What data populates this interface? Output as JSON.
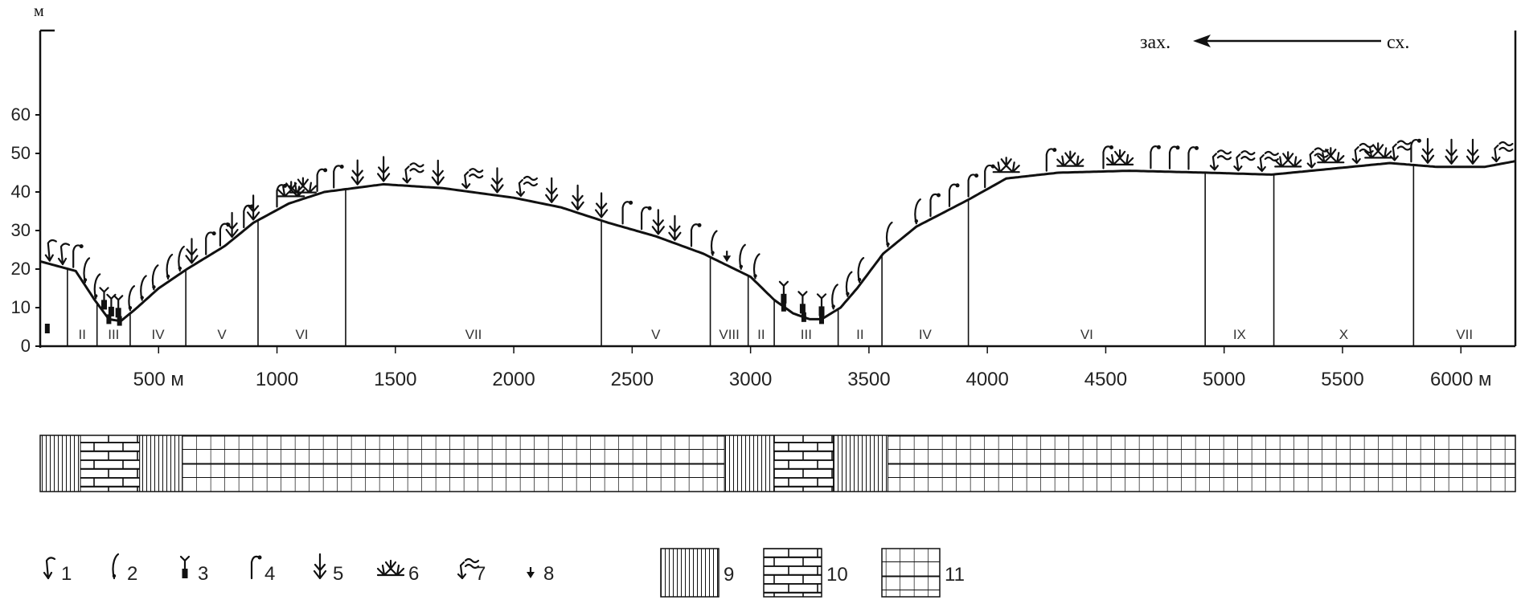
{
  "axes": {
    "y_unit": "м",
    "y_ticks": [
      0,
      10,
      20,
      30,
      40,
      50,
      60
    ],
    "x_ticks": [
      "500 м",
      "1000",
      "1500",
      "2000",
      "2500",
      "3000",
      "3500",
      "4000",
      "4500",
      "5000",
      "5500",
      "6000 м"
    ],
    "x_tick_values": [
      500,
      1000,
      1500,
      2000,
      2500,
      3000,
      3500,
      4000,
      4500,
      5000,
      5500,
      6000
    ],
    "x_range": [
      0,
      6230
    ],
    "y_range": [
      0,
      75
    ]
  },
  "direction": {
    "west": "зах.",
    "east": "сх."
  },
  "profile": [
    [
      0,
      22
    ],
    [
      150,
      19.5
    ],
    [
      230,
      12
    ],
    [
      290,
      7
    ],
    [
      340,
      6.5
    ],
    [
      400,
      9.5
    ],
    [
      500,
      15
    ],
    [
      620,
      20
    ],
    [
      780,
      26
    ],
    [
      900,
      32
    ],
    [
      1050,
      37
    ],
    [
      1200,
      40
    ],
    [
      1450,
      42
    ],
    [
      1700,
      41
    ],
    [
      2000,
      38.5
    ],
    [
      2200,
      36
    ],
    [
      2400,
      32
    ],
    [
      2600,
      28.5
    ],
    [
      2800,
      24
    ],
    [
      3000,
      18
    ],
    [
      3100,
      12
    ],
    [
      3180,
      8.5
    ],
    [
      3250,
      7
    ],
    [
      3300,
      7
    ],
    [
      3380,
      10
    ],
    [
      3450,
      15
    ],
    [
      3560,
      24
    ],
    [
      3700,
      31
    ],
    [
      3920,
      38
    ],
    [
      4080,
      43.5
    ],
    [
      4300,
      45
    ],
    [
      4600,
      45.5
    ],
    [
      4930,
      45
    ],
    [
      5200,
      44.5
    ],
    [
      5450,
      46
    ],
    [
      5700,
      47.5
    ],
    [
      5900,
      46.5
    ],
    [
      6100,
      46.5
    ],
    [
      6230,
      48
    ]
  ],
  "zones": [
    {
      "label": "II",
      "from": 115,
      "to": 240
    },
    {
      "label": "III",
      "from": 240,
      "to": 380
    },
    {
      "label": "IV",
      "from": 380,
      "to": 615
    },
    {
      "label": "V",
      "from": 615,
      "to": 920
    },
    {
      "label": "VI",
      "from": 920,
      "to": 1290
    },
    {
      "label": "VII",
      "from": 1290,
      "to": 2370
    },
    {
      "label": "V",
      "from": 2370,
      "to": 2830
    },
    {
      "label": "VIII",
      "from": 2830,
      "to": 2990
    },
    {
      "label": "II",
      "from": 2990,
      "to": 3100
    },
    {
      "label": "III",
      "from": 3100,
      "to": 3370
    },
    {
      "label": "II",
      "from": 3370,
      "to": 3555
    },
    {
      "label": "IV",
      "from": 3555,
      "to": 3920
    },
    {
      "label": "VI",
      "from": 3920,
      "to": 4920
    },
    {
      "label": "IX",
      "from": 4920,
      "to": 5210
    },
    {
      "label": "X",
      "from": 5210,
      "to": 5800
    },
    {
      "label": "VII",
      "from": 5800,
      "to": 6230
    }
  ],
  "vegetation": [
    {
      "x": 40,
      "type": 1
    },
    {
      "x": 95,
      "type": 1
    },
    {
      "x": 140,
      "type": 4
    },
    {
      "x": 190,
      "type": 2
    },
    {
      "x": 235,
      "type": 2
    },
    {
      "x": 270,
      "type": 3
    },
    {
      "x": 300,
      "type": 3
    },
    {
      "x": 330,
      "type": 3
    },
    {
      "x": 380,
      "type": 2
    },
    {
      "x": 430,
      "type": 2
    },
    {
      "x": 480,
      "type": 2
    },
    {
      "x": 540,
      "type": 2
    },
    {
      "x": 590,
      "type": 2
    },
    {
      "x": 640,
      "type": 5
    },
    {
      "x": 700,
      "type": 4
    },
    {
      "x": 760,
      "type": 4
    },
    {
      "x": 810,
      "type": 5
    },
    {
      "x": 860,
      "type": 4
    },
    {
      "x": 900,
      "type": 5
    },
    {
      "x": 1000,
      "type": 4
    },
    {
      "x": 1060,
      "type": 6
    },
    {
      "x": 1110,
      "type": 6
    },
    {
      "x": 1170,
      "type": 4
    },
    {
      "x": 1240,
      "type": 4
    },
    {
      "x": 1340,
      "type": 5
    },
    {
      "x": 1450,
      "type": 5
    },
    {
      "x": 1550,
      "type": 7
    },
    {
      "x": 1680,
      "type": 5
    },
    {
      "x": 1800,
      "type": 7
    },
    {
      "x": 1930,
      "type": 5
    },
    {
      "x": 2030,
      "type": 7
    },
    {
      "x": 2160,
      "type": 5
    },
    {
      "x": 2270,
      "type": 5
    },
    {
      "x": 2370,
      "type": 5
    },
    {
      "x": 2460,
      "type": 4
    },
    {
      "x": 2540,
      "type": 4
    },
    {
      "x": 2610,
      "type": 5
    },
    {
      "x": 2680,
      "type": 5
    },
    {
      "x": 2750,
      "type": 4
    },
    {
      "x": 2840,
      "type": 2
    },
    {
      "x": 2900,
      "type": 8
    },
    {
      "x": 2960,
      "type": 2
    },
    {
      "x": 3020,
      "type": 2
    },
    {
      "x": 3140,
      "type": 3
    },
    {
      "x": 3220,
      "type": 3
    },
    {
      "x": 3300,
      "type": 3
    },
    {
      "x": 3350,
      "type": 2
    },
    {
      "x": 3410,
      "type": 2
    },
    {
      "x": 3460,
      "type": 2
    },
    {
      "x": 3580,
      "type": 2
    },
    {
      "x": 3700,
      "type": 2
    },
    {
      "x": 3760,
      "type": 4
    },
    {
      "x": 3840,
      "type": 4
    },
    {
      "x": 3920,
      "type": 4
    },
    {
      "x": 3990,
      "type": 4
    },
    {
      "x": 4080,
      "type": 6
    },
    {
      "x": 4250,
      "type": 4
    },
    {
      "x": 4350,
      "type": 6
    },
    {
      "x": 4490,
      "type": 4
    },
    {
      "x": 4560,
      "type": 6
    },
    {
      "x": 4690,
      "type": 4
    },
    {
      "x": 4770,
      "type": 4
    },
    {
      "x": 4850,
      "type": 4
    },
    {
      "x": 4960,
      "type": 7
    },
    {
      "x": 5060,
      "type": 7
    },
    {
      "x": 5160,
      "type": 7
    },
    {
      "x": 5270,
      "type": 6
    },
    {
      "x": 5370,
      "type": 7
    },
    {
      "x": 5450,
      "type": 6
    },
    {
      "x": 5560,
      "type": 7
    },
    {
      "x": 5650,
      "type": 6
    },
    {
      "x": 5720,
      "type": 7
    },
    {
      "x": 5790,
      "type": 4
    },
    {
      "x": 5860,
      "type": 5
    },
    {
      "x": 5960,
      "type": 5
    },
    {
      "x": 6050,
      "type": 5
    },
    {
      "x": 6150,
      "type": 7
    }
  ],
  "ground_markers": [
    {
      "x": 30,
      "type": 3
    },
    {
      "x": 290,
      "type": 3
    },
    {
      "x": 335,
      "type": 3
    },
    {
      "x": 3140,
      "type": 3
    },
    {
      "x": 3225,
      "type": 3
    },
    {
      "x": 3300,
      "type": 3
    }
  ],
  "bands": [
    {
      "from": 0,
      "to": 170,
      "pattern": 9
    },
    {
      "from": 170,
      "to": 420,
      "pattern": 10
    },
    {
      "from": 420,
      "to": 600,
      "pattern": 9
    },
    {
      "from": 600,
      "to": 2890,
      "pattern": 11
    },
    {
      "from": 2890,
      "to": 3100,
      "pattern": 9
    },
    {
      "from": 3100,
      "to": 3350,
      "pattern": 10
    },
    {
      "from": 3350,
      "to": 3580,
      "pattern": 9
    },
    {
      "from": 3580,
      "to": 6230,
      "pattern": 11
    }
  ],
  "legend": [
    {
      "type": 1,
      "label": "1"
    },
    {
      "type": 2,
      "label": "2"
    },
    {
      "type": 3,
      "label": "3"
    },
    {
      "type": 4,
      "label": "4"
    },
    {
      "type": 5,
      "label": "5"
    },
    {
      "type": 6,
      "label": "6"
    },
    {
      "type": 7,
      "label": "7"
    },
    {
      "type": 8,
      "label": "8"
    }
  ],
  "legend_patterns": [
    {
      "pattern": 9,
      "label": "9"
    },
    {
      "pattern": 10,
      "label": "10"
    },
    {
      "pattern": 11,
      "label": "11"
    }
  ]
}
